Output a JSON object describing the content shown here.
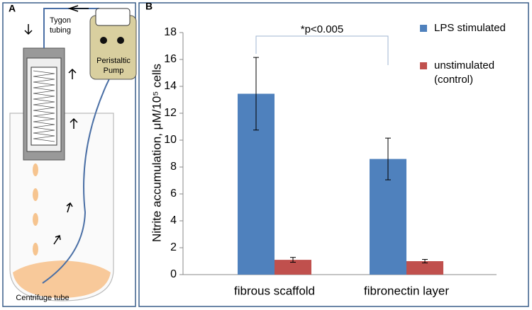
{
  "diagram": {
    "panel_label": "A",
    "tubing_label": [
      "Tygon",
      "tubing"
    ],
    "pump_label": [
      "Peristaltic",
      "Pump"
    ],
    "tube_label": "Centrifuge tube"
  },
  "chart_data": {
    "type": "bar",
    "panel_label": "B",
    "ylabel": "Nitrite accumulation, μM/10⁵ cells",
    "categories": [
      "fibrous scaffold",
      "fibronectin layer"
    ],
    "series": [
      {
        "name": "LPS stimulated",
        "color": "#4f81bd",
        "values": [
          13.45,
          8.6
        ],
        "errors": [
          2.7,
          1.55
        ]
      },
      {
        "name": "unstimulated (control)",
        "color": "#c0504d",
        "values": [
          1.1,
          1.0
        ],
        "errors": [
          0.18,
          0.13
        ]
      }
    ],
    "ylim": [
      0,
      18
    ],
    "yticks": [
      0,
      2,
      4,
      6,
      8,
      10,
      12,
      14,
      16,
      18
    ],
    "annotation": "*p<0.005"
  }
}
